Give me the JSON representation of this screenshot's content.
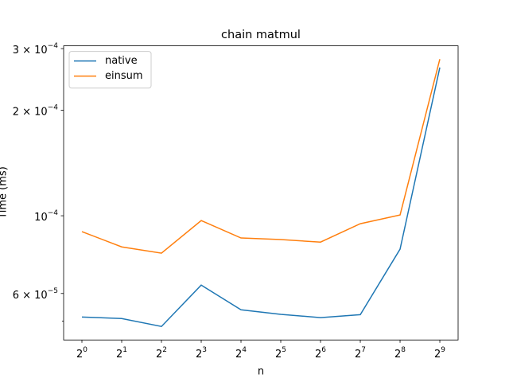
{
  "chart_data": {
    "type": "line",
    "title": "chain matmul",
    "xlabel": "n",
    "ylabel": "Time (ms)",
    "x": [
      1,
      2,
      4,
      8,
      16,
      32,
      64,
      128,
      256,
      512
    ],
    "series": [
      {
        "name": "native",
        "color": "#1f77b4",
        "values": [
          5.14e-05,
          5.09e-05,
          4.83e-05,
          6.34e-05,
          5.39e-05,
          5.23e-05,
          5.12e-05,
          5.22e-05,
          8.03e-05,
          0.000265
        ]
      },
      {
        "name": "einsum",
        "color": "#ff7f0e",
        "values": [
          9.01e-05,
          8.15e-05,
          7.82e-05,
          9.69e-05,
          8.64e-05,
          8.55e-05,
          8.41e-05,
          9.49e-05,
          0.0001005,
          0.00028
        ]
      }
    ],
    "xscale": "log2",
    "yscale": "log",
    "xlim": [
      0.727,
      704
    ],
    "ylim": [
      4.42e-05,
      0.0003055
    ],
    "xticks": [
      {
        "value": 1,
        "label": "2^0"
      },
      {
        "value": 2,
        "label": "2^1"
      },
      {
        "value": 4,
        "label": "2^2"
      },
      {
        "value": 8,
        "label": "2^3"
      },
      {
        "value": 16,
        "label": "2^4"
      },
      {
        "value": 32,
        "label": "2^5"
      },
      {
        "value": 64,
        "label": "2^6"
      },
      {
        "value": 128,
        "label": "2^7"
      },
      {
        "value": 256,
        "label": "2^8"
      },
      {
        "value": 512,
        "label": "2^9"
      }
    ],
    "yticks": [
      {
        "value": 6e-05,
        "label": "6 × 10^−5"
      },
      {
        "value": 0.0001,
        "label": "10^−4"
      },
      {
        "value": 0.0002,
        "label": "2 × 10^−4"
      },
      {
        "value": 0.0003,
        "label": "3 × 10^−4"
      }
    ],
    "yminorticks": [
      5e-05
    ],
    "legend": "upper left"
  }
}
